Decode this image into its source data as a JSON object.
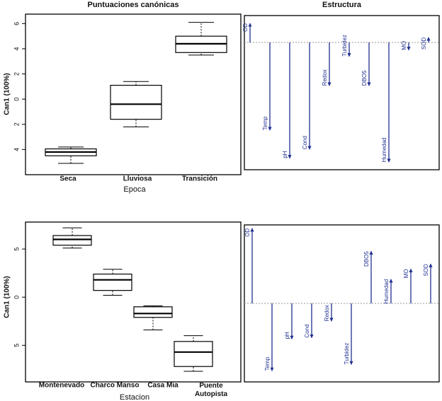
{
  "chart_data": [
    {
      "type": "box",
      "title": "Puntuaciones canónicas",
      "y_label": "Can1 (100%)",
      "x_label": "Epoca",
      "categories": [
        "Seca",
        "Lluviosa",
        "Transición"
      ],
      "low": [
        -5.1,
        -2.2,
        3.5
      ],
      "q1": [
        -4.5,
        -1.6,
        3.7
      ],
      "median": [
        -4.2,
        -0.4,
        4.4
      ],
      "q3": [
        -3.95,
        1.1,
        5.0
      ],
      "high": [
        -3.8,
        1.4,
        6.1
      ],
      "ylim": [
        -6,
        6.75
      ],
      "yticks": [
        {
          "value": -4,
          "label": "4"
        },
        {
          "value": -2,
          "label": "2"
        },
        0,
        2,
        4,
        6
      ]
    },
    {
      "type": "arrow",
      "title": "Estructura",
      "color": "#1f2f8f",
      "categories": [
        "OD",
        "Temp",
        "pH",
        "Cond",
        "Redox",
        "Turbidez",
        "DBO5",
        "Humedad",
        "MO",
        "SOD"
      ],
      "values": [
        0.15,
        -0.69,
        -0.91,
        -0.84,
        -0.34,
        -0.11,
        -0.34,
        -0.94,
        -0.06,
        0.04
      ]
    },
    {
      "type": "box",
      "y_label": "Can1 (100%)",
      "x_label": "Estacion",
      "categories": [
        "Montenevado",
        "Charco Manso",
        "Casa Mia",
        "Puente Autopista"
      ],
      "low": [
        5.1,
        0.2,
        -3.4,
        -7.7
      ],
      "q1": [
        5.4,
        0.7,
        -2.1,
        -7.2
      ],
      "median": [
        6.0,
        1.8,
        -1.7,
        -5.7
      ],
      "q3": [
        6.4,
        2.4,
        -1.0,
        -4.6
      ],
      "high": [
        7.2,
        2.9,
        -0.9,
        -4.0
      ],
      "ylim": [
        -8.8,
        7.8
      ],
      "yticks": [
        {
          "value": -5,
          "label": "5"
        },
        0,
        5
      ]
    },
    {
      "type": "arrow",
      "color": "#1f2f8f",
      "categories": [
        "OD",
        "Temp",
        "pH",
        "Cond",
        "Redox",
        "Turbidez",
        "DBO5",
        "Humedad",
        "MO",
        "SOD"
      ],
      "values": [
        0.59,
        -0.53,
        -0.28,
        -0.27,
        -0.14,
        -0.48,
        0.41,
        0.19,
        0.27,
        0.31
      ]
    }
  ]
}
